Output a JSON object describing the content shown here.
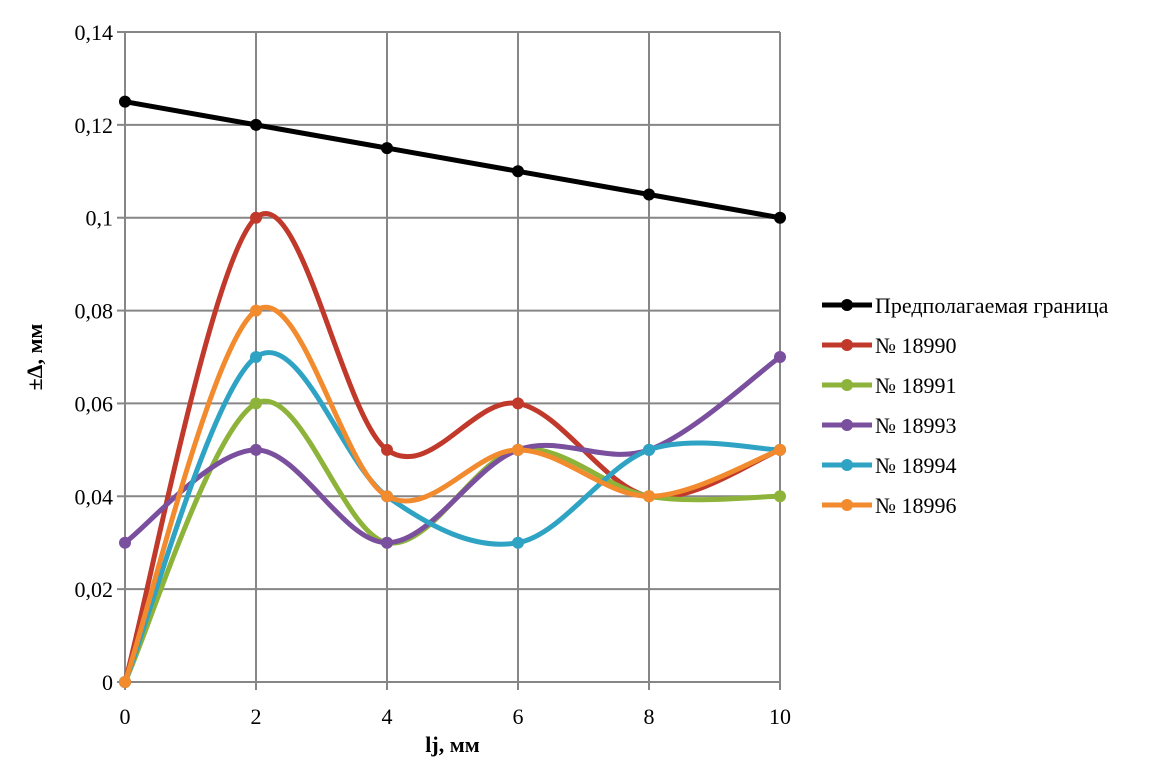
{
  "chart_data": {
    "type": "line",
    "smooth": true,
    "xlabel": "lj, мм",
    "ylabel": "±Δ, мм",
    "xlim": [
      0,
      10
    ],
    "ylim": [
      0,
      0.14
    ],
    "x_ticks": [
      0,
      2,
      4,
      6,
      8,
      10
    ],
    "x_tick_labels": [
      "0",
      "2",
      "4",
      "6",
      "8",
      "10"
    ],
    "y_ticks": [
      0,
      0.02,
      0.04,
      0.06,
      0.08,
      0.1,
      0.12,
      0.14
    ],
    "y_tick_labels": [
      "0",
      "0,02",
      "0,04",
      "0,06",
      "0,08",
      "0,1",
      "0,12",
      "0,14"
    ],
    "grid": true,
    "legend_position": "right",
    "x": [
      0,
      2,
      4,
      6,
      8,
      10
    ],
    "series": [
      {
        "name": "Предполагаемая граница",
        "color": "#000000",
        "smooth": false,
        "values": [
          0.125,
          0.12,
          0.115,
          0.11,
          0.105,
          0.1
        ]
      },
      {
        "name": "№ 18990",
        "color": "#C0392B",
        "smooth": true,
        "values": [
          0,
          0.1,
          0.05,
          0.06,
          0.04,
          0.05
        ]
      },
      {
        "name": "№ 18991",
        "color": "#8DB33A",
        "smooth": true,
        "values": [
          0,
          0.06,
          0.03,
          0.05,
          0.04,
          0.04
        ]
      },
      {
        "name": "№ 18993",
        "color": "#7A4F9E",
        "smooth": true,
        "values": [
          0.03,
          0.05,
          0.03,
          0.05,
          0.05,
          0.07
        ]
      },
      {
        "name": "№ 18994",
        "color": "#2EA3C4",
        "smooth": true,
        "values": [
          0,
          0.07,
          0.04,
          0.03,
          0.05,
          0.05
        ]
      },
      {
        "name": "№ 18996",
        "color": "#F28A2E",
        "smooth": true,
        "values": [
          0,
          0.08,
          0.04,
          0.05,
          0.04,
          0.05
        ]
      }
    ]
  }
}
